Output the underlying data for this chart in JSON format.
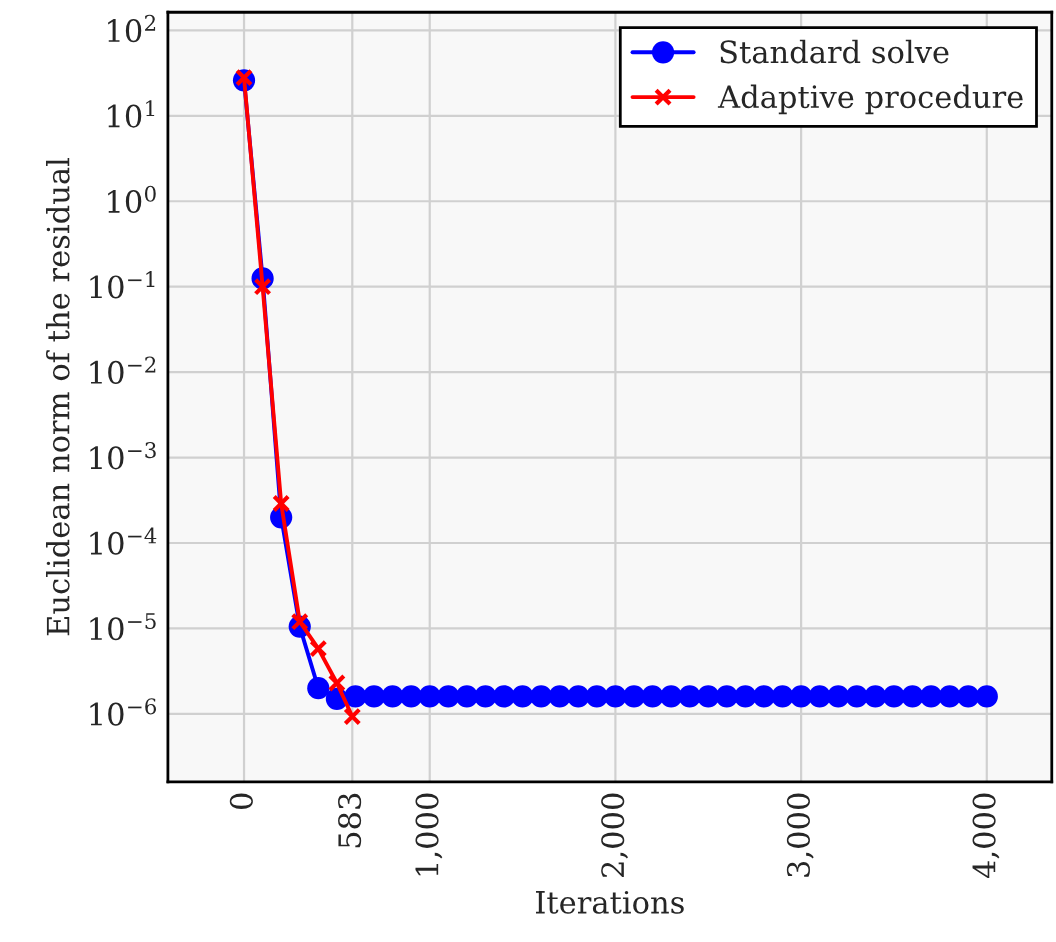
{
  "chart_data": {
    "type": "line",
    "xlabel": "Iterations",
    "ylabel": "Euclidean norm of the residual",
    "log": "y",
    "grid": true,
    "legend": "top right",
    "xlim": [
      -410,
      4350
    ],
    "xticks": [
      0,
      583,
      {
        "value": 1000,
        "label": "1,000"
      },
      {
        "value": 2000,
        "label": "2,000"
      },
      {
        "value": 3000,
        "label": "3,000"
      },
      {
        "value": 4000,
        "label": "4,000"
      }
    ],
    "ylim": [
      1.6e-07,
      163
    ],
    "yticks": [
      {
        "value": 1e-06,
        "label": "10$^{−6}$"
      },
      {
        "value": 1e-05,
        "label": "10$^{−5}$"
      },
      {
        "value": 0.0001,
        "label": "10$^{−4}$"
      },
      {
        "value": 0.001,
        "label": "10$^{−3}$"
      },
      {
        "value": 0.01,
        "label": "10$^{−2}$"
      },
      {
        "value": 0.1,
        "label": "10$^{−1}$"
      },
      {
        "value": 1,
        "label": "10$^{0}$"
      },
      {
        "value": 10,
        "label": "10$^{1}$"
      },
      {
        "value": 100,
        "label": "10$^{2}$"
      }
    ],
    "series": [
      {
        "name": "Standard solve",
        "color": "#0000ff",
        "marker": "circle",
        "x": [
          0,
          100,
          200,
          300,
          400,
          500,
          600,
          700,
          800,
          900,
          1000,
          1100,
          1200,
          1300,
          1400,
          1500,
          1600,
          1700,
          1800,
          1900,
          2000,
          2100,
          2200,
          2300,
          2400,
          2500,
          2600,
          2700,
          2800,
          2900,
          3000,
          3100,
          3200,
          3300,
          3400,
          3500,
          3600,
          3700,
          3800,
          3900,
          4000
        ],
        "values": [
          26,
          0.125,
          0.0002,
          1.05e-05,
          2e-06,
          1.5e-06,
          1.6e-06,
          1.6e-06,
          1.6e-06,
          1.6e-06,
          1.6e-06,
          1.6e-06,
          1.6e-06,
          1.6e-06,
          1.6e-06,
          1.6e-06,
          1.6e-06,
          1.6e-06,
          1.6e-06,
          1.6e-06,
          1.6e-06,
          1.6e-06,
          1.6e-06,
          1.6e-06,
          1.6e-06,
          1.6e-06,
          1.6e-06,
          1.6e-06,
          1.6e-06,
          1.6e-06,
          1.6e-06,
          1.6e-06,
          1.6e-06,
          1.6e-06,
          1.6e-06,
          1.6e-06,
          1.6e-06,
          1.6e-06,
          1.6e-06,
          1.6e-06,
          1.6e-06
        ]
      },
      {
        "name": "Adaptive procedure",
        "color": "#ff0000",
        "marker": "cross",
        "x": [
          0,
          100,
          200,
          300,
          400,
          500,
          583
        ],
        "values": [
          28,
          0.1,
          0.00029,
          1.2e-05,
          5.8e-06,
          2.3e-06,
          9.3e-07
        ]
      }
    ]
  }
}
